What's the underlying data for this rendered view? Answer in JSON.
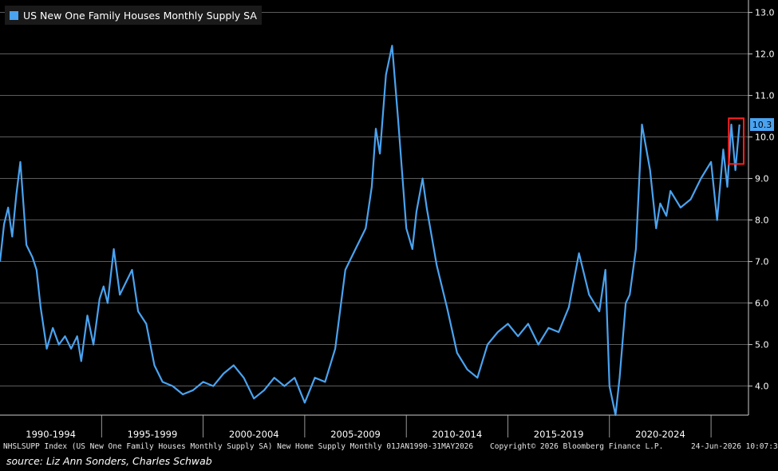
{
  "legend": {
    "label": "US New One Family Houses Monthly Supply SA"
  },
  "footer": {
    "index_desc": "NHSLSUPP Index (US New One Family Houses Monthly Supply SA) New Home Supply Monthly 01JAN1990-31MAY2026",
    "copyright": "Copyright© 2026 Bloomberg Finance L.P.",
    "timestamp": "24-Jun-2026 10:07:36"
  },
  "source_note": "source: Liz Ann Sonders, Charles Schwab",
  "chart_data": {
    "type": "line",
    "ylim": [
      3.3,
      13.3
    ],
    "y_ticks": [
      "13.0",
      "12.0",
      "11.0",
      "10.0",
      "9.0",
      "8.0",
      "7.0",
      "6.0",
      "5.0",
      "4.0"
    ],
    "x_range": [
      1990.0,
      2026.45
    ],
    "x_ticks": [
      "1990-1994",
      "1995-1999",
      "2000-2004",
      "2005-2009",
      "2010-2014",
      "2015-2019",
      "2020-2024"
    ],
    "grid": true,
    "last_value_label": "10.3",
    "series": [
      {
        "name": "US New One Family Houses Monthly Supply SA",
        "color": "#4aa3f0",
        "x": [
          1990.0,
          1990.2,
          1990.4,
          1990.6,
          1990.8,
          1991.0,
          1991.3,
          1991.6,
          1991.8,
          1992.0,
          1992.3,
          1992.6,
          1992.9,
          1993.2,
          1993.5,
          1993.8,
          1994.0,
          1994.3,
          1994.6,
          1994.9,
          1995.1,
          1995.3,
          1995.6,
          1995.9,
          1996.2,
          1996.5,
          1996.8,
          1997.2,
          1997.6,
          1998.0,
          1998.5,
          1999.0,
          1999.5,
          2000.0,
          2000.5,
          2001.0,
          2001.5,
          2002.0,
          2002.5,
          2003.0,
          2003.5,
          2004.0,
          2004.5,
          2005.0,
          2005.5,
          2006.0,
          2006.5,
          2007.0,
          2007.5,
          2008.0,
          2008.3,
          2008.5,
          2008.7,
          2009.0,
          2009.3,
          2009.6,
          2010.0,
          2010.3,
          2010.5,
          2010.8,
          2011.0,
          2011.5,
          2012.0,
          2012.5,
          2013.0,
          2013.5,
          2014.0,
          2014.5,
          2015.0,
          2015.5,
          2016.0,
          2016.5,
          2017.0,
          2017.5,
          2018.0,
          2018.5,
          2019.0,
          2019.5,
          2019.8,
          2020.0,
          2020.3,
          2020.5,
          2020.8,
          2021.0,
          2021.3,
          2021.6,
          2022.0,
          2022.3,
          2022.5,
          2022.8,
          2023.0,
          2023.5,
          2024.0,
          2024.5,
          2025.0,
          2025.3,
          2025.6,
          2025.8,
          2026.0,
          2026.2,
          2026.4
        ],
        "values": [
          7.0,
          7.9,
          8.3,
          7.6,
          8.6,
          9.4,
          7.4,
          7.1,
          6.8,
          5.9,
          4.9,
          5.4,
          5.0,
          5.2,
          4.9,
          5.2,
          4.6,
          5.7,
          5.0,
          6.1,
          6.4,
          6.0,
          7.3,
          6.2,
          6.5,
          6.8,
          5.8,
          5.5,
          4.5,
          4.1,
          4.0,
          3.8,
          3.9,
          4.1,
          4.0,
          4.3,
          4.5,
          4.2,
          3.7,
          3.9,
          4.2,
          4.0,
          4.2,
          3.6,
          4.2,
          4.1,
          4.9,
          6.8,
          7.3,
          7.8,
          8.8,
          10.2,
          9.6,
          11.5,
          12.2,
          10.4,
          7.8,
          7.3,
          8.2,
          9.0,
          8.3,
          6.9,
          5.9,
          4.8,
          4.4,
          4.2,
          5.0,
          5.3,
          5.5,
          5.2,
          5.5,
          5.0,
          5.4,
          5.3,
          5.9,
          7.2,
          6.2,
          5.8,
          6.8,
          4.0,
          3.3,
          4.2,
          6.0,
          6.2,
          7.3,
          10.3,
          9.2,
          7.8,
          8.4,
          8.1,
          8.7,
          8.3,
          8.5,
          9.0,
          9.4,
          8.0,
          9.7,
          8.8,
          10.3,
          9.2,
          10.3
        ]
      }
    ],
    "annotation": "red rectangle highlighting latest reading"
  }
}
